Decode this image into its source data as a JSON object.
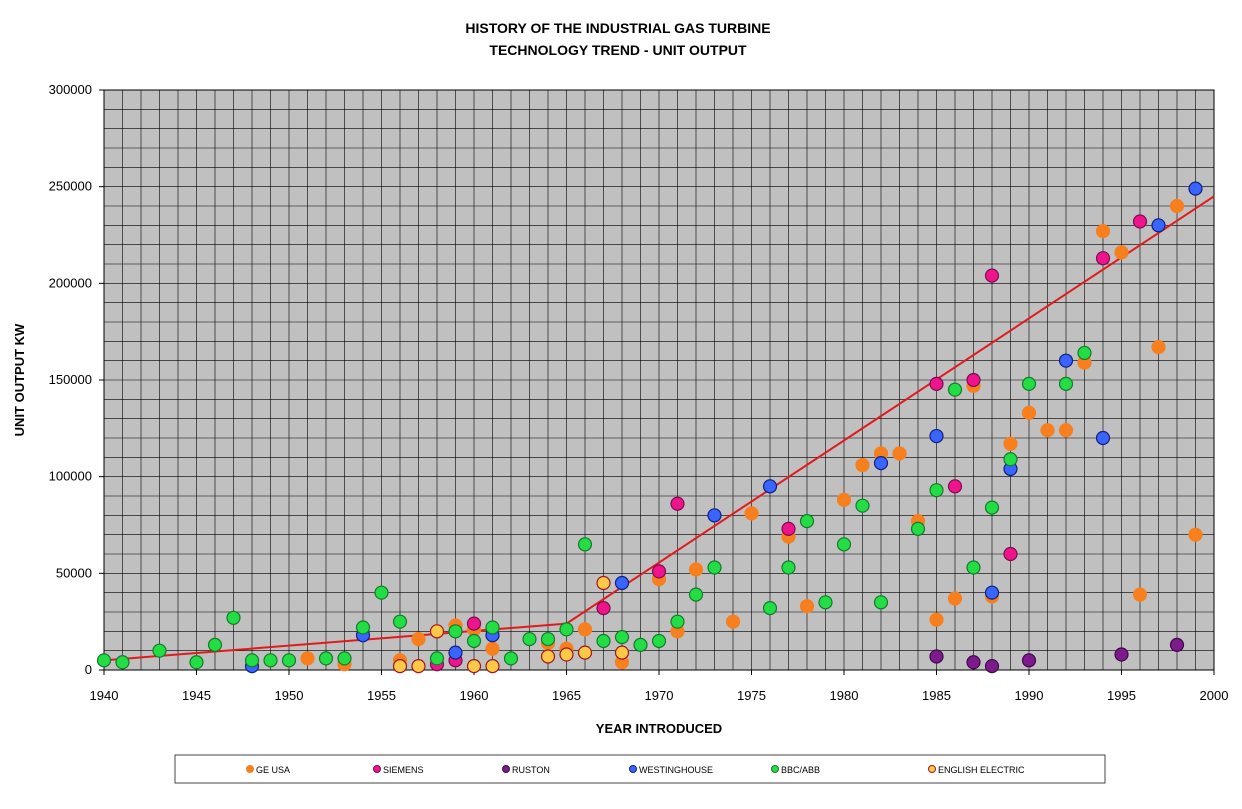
{
  "chart_data": {
    "type": "scatter",
    "title_lines": [
      "HISTORY OF THE INDUSTRIAL GAS TURBINE",
      "TECHNOLOGY TREND - UNIT OUTPUT"
    ],
    "xlabel": "YEAR INTRODUCED",
    "ylabel": "UNIT OUTPUT KW",
    "xlim": [
      1940,
      2000
    ],
    "ylim": [
      0,
      300000
    ],
    "x_ticks": [
      1940,
      1945,
      1950,
      1955,
      1960,
      1965,
      1970,
      1975,
      1980,
      1985,
      1990,
      1995,
      2000
    ],
    "y_ticks": [
      0,
      50000,
      100000,
      150000,
      200000,
      250000,
      300000
    ],
    "grid": "on (minor grid every 1 year and every 10000 kW)",
    "legend_position": "bottom",
    "plot_background": "#c0c0c0",
    "trend_line": {
      "color": "#e31a1c",
      "points": [
        [
          1940,
          5000
        ],
        [
          1965,
          24000
        ],
        [
          2000,
          245000
        ]
      ]
    },
    "series": [
      {
        "name": "GE USA",
        "color": "#f77f1e",
        "edge": "#f77f1e",
        "points": [
          [
            1951,
            6000
          ],
          [
            1953,
            3000
          ],
          [
            1956,
            5000
          ],
          [
            1957,
            16000
          ],
          [
            1958,
            20000
          ],
          [
            1959,
            23000
          ],
          [
            1960,
            21000
          ],
          [
            1961,
            11000
          ],
          [
            1964,
            14000
          ],
          [
            1965,
            11000
          ],
          [
            1966,
            21000
          ],
          [
            1968,
            4000
          ],
          [
            1970,
            47000
          ],
          [
            1971,
            20000
          ],
          [
            1972,
            52000
          ],
          [
            1974,
            25000
          ],
          [
            1975,
            81000
          ],
          [
            1977,
            69000
          ],
          [
            1978,
            33000
          ],
          [
            1980,
            88000
          ],
          [
            1981,
            106000
          ],
          [
            1982,
            112000
          ],
          [
            1983,
            112000
          ],
          [
            1984,
            77000
          ],
          [
            1985,
            26000
          ],
          [
            1986,
            37000
          ],
          [
            1987,
            147000
          ],
          [
            1988,
            38000
          ],
          [
            1989,
            117000
          ],
          [
            1990,
            133000
          ],
          [
            1991,
            124000
          ],
          [
            1992,
            124000
          ],
          [
            1993,
            159000
          ],
          [
            1994,
            227000
          ],
          [
            1995,
            216000
          ],
          [
            1996,
            39000
          ],
          [
            1997,
            167000
          ],
          [
            1998,
            240000
          ],
          [
            1999,
            70000
          ]
        ]
      },
      {
        "name": "SIEMENS",
        "color": "#f0148c",
        "edge": "#7a0d50",
        "points": [
          [
            1958,
            3000
          ],
          [
            1959,
            5000
          ],
          [
            1960,
            24000
          ],
          [
            1967,
            32000
          ],
          [
            1970,
            51000
          ],
          [
            1971,
            86000
          ],
          [
            1977,
            73000
          ],
          [
            1985,
            148000
          ],
          [
            1986,
            95000
          ],
          [
            1987,
            150000
          ],
          [
            1988,
            204000
          ],
          [
            1989,
            60000
          ],
          [
            1994,
            213000
          ],
          [
            1996,
            232000
          ]
        ]
      },
      {
        "name": "RUSTON",
        "color": "#7d1a8c",
        "edge": "#3d0a47",
        "points": [
          [
            1985,
            7000
          ],
          [
            1987,
            4000
          ],
          [
            1988,
            2000
          ],
          [
            1990,
            5000
          ],
          [
            1995,
            8000
          ],
          [
            1998,
            13000
          ]
        ]
      },
      {
        "name": "WESTINGHOUSE",
        "color": "#3a64ff",
        "edge": "#10207a",
        "points": [
          [
            1948,
            2000
          ],
          [
            1954,
            18000
          ],
          [
            1959,
            9000
          ],
          [
            1961,
            18000
          ],
          [
            1968,
            45000
          ],
          [
            1973,
            80000
          ],
          [
            1976,
            95000
          ],
          [
            1982,
            107000
          ],
          [
            1985,
            121000
          ],
          [
            1988,
            40000
          ],
          [
            1989,
            104000
          ],
          [
            1992,
            160000
          ],
          [
            1994,
            120000
          ],
          [
            1997,
            230000
          ],
          [
            1999,
            249000
          ]
        ]
      },
      {
        "name": "BBC/ABB",
        "color": "#22dd44",
        "edge": "#157a2a",
        "points": [
          [
            1940,
            5000
          ],
          [
            1941,
            4000
          ],
          [
            1943,
            10000
          ],
          [
            1945,
            4000
          ],
          [
            1946,
            13000
          ],
          [
            1947,
            27000
          ],
          [
            1948,
            5000
          ],
          [
            1949,
            5000
          ],
          [
            1950,
            5000
          ],
          [
            1952,
            6000
          ],
          [
            1953,
            6000
          ],
          [
            1954,
            22000
          ],
          [
            1955,
            40000
          ],
          [
            1956,
            25000
          ],
          [
            1958,
            6000
          ],
          [
            1959,
            20000
          ],
          [
            1960,
            15000
          ],
          [
            1961,
            22000
          ],
          [
            1962,
            6000
          ],
          [
            1963,
            16000
          ],
          [
            1964,
            16000
          ],
          [
            1965,
            21000
          ],
          [
            1966,
            65000
          ],
          [
            1967,
            15000
          ],
          [
            1968,
            17000
          ],
          [
            1969,
            13000
          ],
          [
            1970,
            15000
          ],
          [
            1971,
            25000
          ],
          [
            1972,
            39000
          ],
          [
            1973,
            53000
          ],
          [
            1976,
            32000
          ],
          [
            1977,
            53000
          ],
          [
            1978,
            77000
          ],
          [
            1979,
            35000
          ],
          [
            1980,
            65000
          ],
          [
            1981,
            85000
          ],
          [
            1982,
            35000
          ],
          [
            1984,
            73000
          ],
          [
            1985,
            93000
          ],
          [
            1986,
            145000
          ],
          [
            1987,
            53000
          ],
          [
            1988,
            84000
          ],
          [
            1989,
            109000
          ],
          [
            1990,
            148000
          ],
          [
            1992,
            148000
          ],
          [
            1993,
            164000
          ]
        ]
      },
      {
        "name": "ENGLISH ELECTRIC",
        "color": "#ffc846",
        "edge": "#a0141e",
        "points": [
          [
            1956,
            2000
          ],
          [
            1957,
            2000
          ],
          [
            1958,
            20000
          ],
          [
            1960,
            2000
          ],
          [
            1961,
            2000
          ],
          [
            1964,
            7000
          ],
          [
            1965,
            8000
          ],
          [
            1966,
            9000
          ],
          [
            1967,
            45000
          ],
          [
            1968,
            9000
          ]
        ]
      }
    ]
  }
}
